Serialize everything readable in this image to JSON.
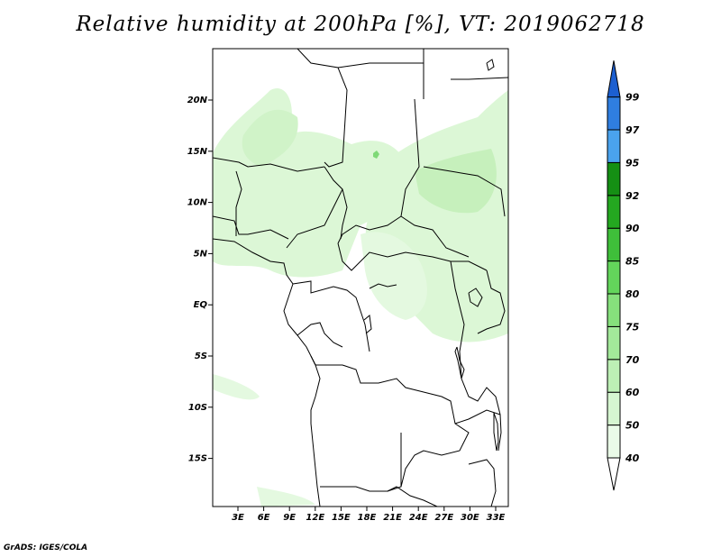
{
  "title": "Relative humidity at 200hPa [%], VT: 2019062718",
  "credit": "GrADS: IGES/COLA",
  "map": {
    "lat_labels": [
      "20N",
      "15N",
      "10N",
      "5N",
      "EQ",
      "5S",
      "10S",
      "15S"
    ],
    "lon_labels": [
      "3E",
      "6E",
      "9E",
      "12E",
      "15E",
      "18E",
      "21E",
      "24E",
      "27E",
      "30E",
      "33E"
    ]
  },
  "colorbar": {
    "labels": [
      "40",
      "50",
      "60",
      "70",
      "75",
      "80",
      "85",
      "90",
      "92",
      "95",
      "97",
      "99"
    ],
    "colors": [
      "#eafbe8",
      "#d6f6d1",
      "#bdf0b5",
      "#a3e99a",
      "#86e07c",
      "#63d55b",
      "#3fbf3a",
      "#24a820",
      "#158f14",
      "#4aa3ee",
      "#2f7ee0",
      "#1c5fd0"
    ]
  }
}
